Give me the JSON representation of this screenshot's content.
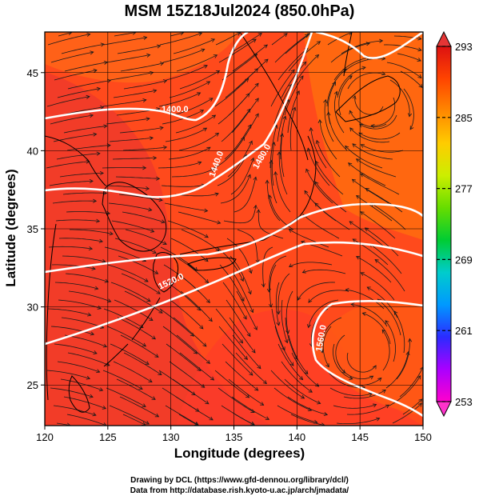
{
  "title": "MSM 15Z18Jul2024 (850.0hPa)",
  "x_axis": {
    "label": "Longitude (degrees)",
    "range": [
      120,
      150
    ],
    "ticks": [
      "120",
      "125",
      "130",
      "135",
      "140",
      "145",
      "150"
    ]
  },
  "y_axis": {
    "label": "Latitude  (degrees)",
    "range": [
      22.4,
      47.6
    ],
    "ticks": [
      "25",
      "30",
      "35",
      "40",
      "45"
    ]
  },
  "colorbar": {
    "range": [
      253,
      293
    ],
    "tick_labels": [
      "293",
      "285",
      "277",
      "269",
      "261",
      "253"
    ],
    "colors": [
      "#ff00cc",
      "#aa00ff",
      "#2b2bff",
      "#0099ff",
      "#00cccc",
      "#00cc33",
      "#66dd00",
      "#ccee00",
      "#ffcc00",
      "#ff8800",
      "#ff4400",
      "#dd1111"
    ]
  },
  "contours": {
    "labels": [
      "1400.0",
      "1440.0",
      "1480.0",
      "1520.0",
      "1560.0"
    ]
  },
  "credits": {
    "line1": "Drawing by DCL (https://www.gfd-dennou.org/library/dcl/)",
    "line2": "Data from http://database.rish.kyoto-u.ac.jp/arch/jmadata/"
  }
}
